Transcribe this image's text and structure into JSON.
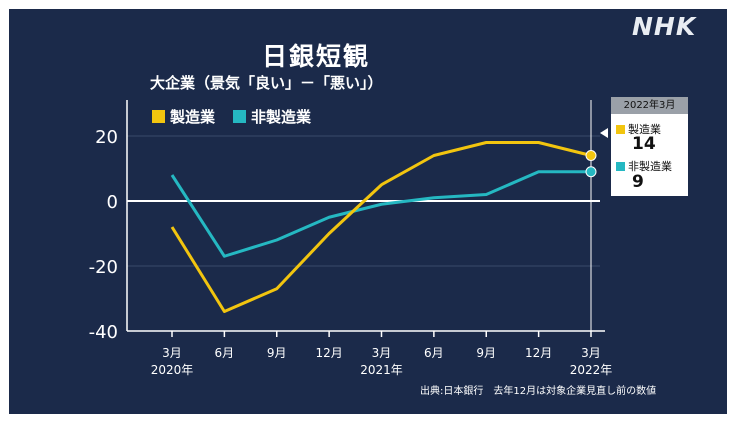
{
  "title": "日銀短観",
  "subtitle": "大企業（景気「良い」－「悪い」）",
  "logo": "NHK",
  "source": "出典:日本銀行　去年12月は対象企業見直し前の数値",
  "colors": {
    "background": "#1b2a4a",
    "manufacturing": "#f2c50f",
    "non_manufacturing": "#25b8c2"
  },
  "callout": {
    "date": "2022年3月",
    "items": [
      {
        "label": "製造業",
        "value": "14"
      },
      {
        "label": "非製造業",
        "value": "9"
      }
    ]
  },
  "chart_data": {
    "type": "line",
    "categories": [
      "3月",
      "6月",
      "9月",
      "12月",
      "3月",
      "6月",
      "9月",
      "12月",
      "3月"
    ],
    "year_labels": [
      "2020年",
      "",
      "",
      "",
      "2021年",
      "",
      "",
      "",
      "2022年"
    ],
    "series": [
      {
        "name": "製造業",
        "values": [
          -8,
          -34,
          -27,
          -10,
          5,
          14,
          18,
          18,
          14
        ]
      },
      {
        "name": "非製造業",
        "values": [
          8,
          -17,
          -12,
          -5,
          -1,
          1,
          2,
          9,
          9
        ]
      }
    ],
    "ylim": [
      -40,
      30
    ],
    "yticks": [
      "20",
      "0",
      "-20",
      "-40"
    ],
    "ytick_values": [
      20,
      0,
      -20,
      -40
    ],
    "legend": "top-left",
    "grid": true
  }
}
